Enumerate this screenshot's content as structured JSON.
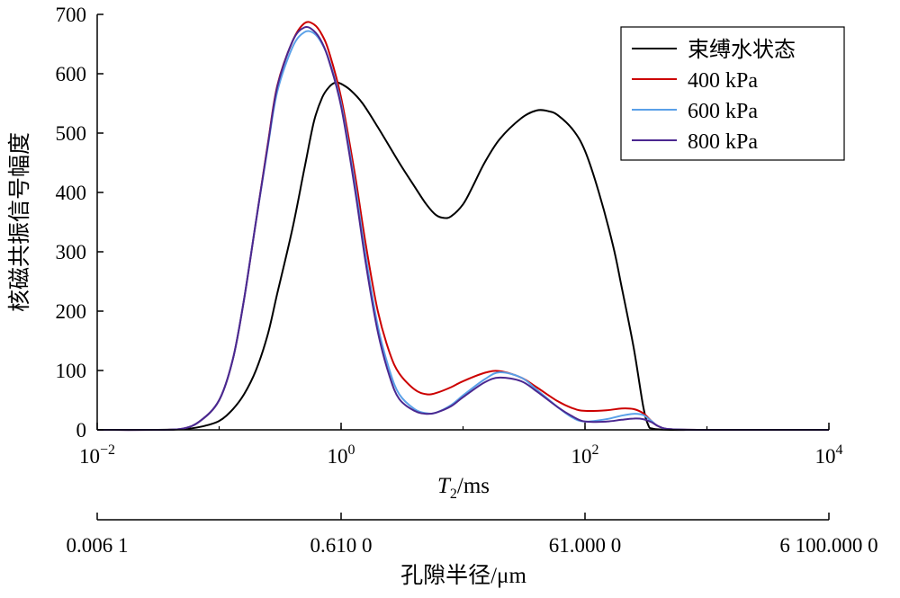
{
  "chart_data": {
    "type": "line",
    "x_scale": "log10",
    "xlim": [
      0.01,
      10000
    ],
    "ylim": [
      0,
      700
    ],
    "ylabel": "核磁共振信号幅度",
    "xlabel_italic": "T",
    "xlabel_sub": "2",
    "xlabel_rest": "/ms",
    "secondary_xlabel": "孔隙半径/μm",
    "y_ticks": [
      {
        "value": 0,
        "label": "0"
      },
      {
        "value": 100,
        "label": "100"
      },
      {
        "value": 200,
        "label": "200"
      },
      {
        "value": 300,
        "label": "300"
      },
      {
        "value": 400,
        "label": "400"
      },
      {
        "value": 500,
        "label": "500"
      },
      {
        "value": 600,
        "label": "600"
      },
      {
        "value": 700,
        "label": "700"
      }
    ],
    "x_ticks": [
      {
        "value": 0.01,
        "base": "10",
        "exp": "−2"
      },
      {
        "value": 1,
        "base": "10",
        "exp": "0"
      },
      {
        "value": 100,
        "base": "10",
        "exp": "2"
      },
      {
        "value": 10000,
        "base": "10",
        "exp": "4"
      }
    ],
    "secondary_x_ticks": [
      {
        "value": 0.01,
        "label": "0.006 1"
      },
      {
        "value": 1,
        "label": "0.610 0"
      },
      {
        "value": 100,
        "label": "61.000 0"
      },
      {
        "value": 10000,
        "label": "6 100.000 0"
      }
    ],
    "legend_position": "top-right",
    "series": [
      {
        "name": "束缚水状态",
        "color": "#000000",
        "points": [
          [
            0.01,
            0
          ],
          [
            0.03,
            0
          ],
          [
            0.05,
            1
          ],
          [
            0.07,
            5
          ],
          [
            0.1,
            15
          ],
          [
            0.13,
            35
          ],
          [
            0.16,
            60
          ],
          [
            0.2,
            100
          ],
          [
            0.25,
            160
          ],
          [
            0.3,
            230
          ],
          [
            0.4,
            340
          ],
          [
            0.5,
            440
          ],
          [
            0.6,
            520
          ],
          [
            0.7,
            560
          ],
          [
            0.8,
            578
          ],
          [
            0.9,
            585
          ],
          [
            1.0,
            583
          ],
          [
            1.2,
            572
          ],
          [
            1.5,
            550
          ],
          [
            2,
            510
          ],
          [
            3,
            450
          ],
          [
            4,
            410
          ],
          [
            5,
            380
          ],
          [
            6,
            362
          ],
          [
            7,
            357
          ],
          [
            8,
            360
          ],
          [
            10,
            380
          ],
          [
            12,
            410
          ],
          [
            15,
            450
          ],
          [
            20,
            490
          ],
          [
            30,
            525
          ],
          [
            40,
            538
          ],
          [
            50,
            537
          ],
          [
            60,
            530
          ],
          [
            80,
            505
          ],
          [
            100,
            470
          ],
          [
            130,
            400
          ],
          [
            170,
            310
          ],
          [
            200,
            240
          ],
          [
            250,
            140
          ],
          [
            300,
            40
          ],
          [
            330,
            8
          ],
          [
            360,
            2
          ],
          [
            500,
            0
          ],
          [
            1000,
            0
          ],
          [
            10000,
            0
          ]
        ]
      },
      {
        "name": "400 kPa",
        "color": "#cc0000",
        "points": [
          [
            0.01,
            0
          ],
          [
            0.03,
            0
          ],
          [
            0.05,
            2
          ],
          [
            0.07,
            15
          ],
          [
            0.1,
            50
          ],
          [
            0.13,
            120
          ],
          [
            0.16,
            220
          ],
          [
            0.2,
            350
          ],
          [
            0.25,
            480
          ],
          [
            0.3,
            580
          ],
          [
            0.4,
            655
          ],
          [
            0.5,
            685
          ],
          [
            0.6,
            683
          ],
          [
            0.7,
            665
          ],
          [
            0.8,
            635
          ],
          [
            1.0,
            560
          ],
          [
            1.3,
            430
          ],
          [
            1.6,
            310
          ],
          [
            2,
            200
          ],
          [
            2.5,
            130
          ],
          [
            3,
            95
          ],
          [
            4,
            68
          ],
          [
            5,
            60
          ],
          [
            6,
            62
          ],
          [
            8,
            72
          ],
          [
            10,
            82
          ],
          [
            15,
            96
          ],
          [
            20,
            99
          ],
          [
            30,
            88
          ],
          [
            40,
            72
          ],
          [
            60,
            48
          ],
          [
            80,
            36
          ],
          [
            100,
            32
          ],
          [
            150,
            33
          ],
          [
            200,
            36
          ],
          [
            250,
            35
          ],
          [
            300,
            28
          ],
          [
            350,
            15
          ],
          [
            400,
            6
          ],
          [
            500,
            1
          ],
          [
            1000,
            0
          ],
          [
            10000,
            0
          ]
        ]
      },
      {
        "name": "600 kPa",
        "color": "#5aa0e8",
        "points": [
          [
            0.01,
            0
          ],
          [
            0.03,
            0
          ],
          [
            0.05,
            2
          ],
          [
            0.07,
            15
          ],
          [
            0.1,
            50
          ],
          [
            0.13,
            120
          ],
          [
            0.16,
            220
          ],
          [
            0.2,
            350
          ],
          [
            0.25,
            475
          ],
          [
            0.3,
            570
          ],
          [
            0.4,
            645
          ],
          [
            0.5,
            670
          ],
          [
            0.6,
            668
          ],
          [
            0.7,
            650
          ],
          [
            0.8,
            622
          ],
          [
            1.0,
            550
          ],
          [
            1.3,
            415
          ],
          [
            1.6,
            290
          ],
          [
            2,
            175
          ],
          [
            2.5,
            100
          ],
          [
            3,
            60
          ],
          [
            4,
            35
          ],
          [
            5,
            28
          ],
          [
            6,
            29
          ],
          [
            8,
            42
          ],
          [
            10,
            58
          ],
          [
            15,
            85
          ],
          [
            20,
            97
          ],
          [
            30,
            88
          ],
          [
            40,
            68
          ],
          [
            60,
            38
          ],
          [
            80,
            20
          ],
          [
            100,
            14
          ],
          [
            150,
            18
          ],
          [
            200,
            24
          ],
          [
            250,
            27
          ],
          [
            300,
            25
          ],
          [
            350,
            15
          ],
          [
            400,
            6
          ],
          [
            500,
            1
          ],
          [
            1000,
            0
          ],
          [
            10000,
            0
          ]
        ]
      },
      {
        "name": "800 kPa",
        "color": "#4b2890",
        "points": [
          [
            0.01,
            0
          ],
          [
            0.03,
            0
          ],
          [
            0.05,
            2
          ],
          [
            0.07,
            15
          ],
          [
            0.1,
            50
          ],
          [
            0.13,
            120
          ],
          [
            0.16,
            220
          ],
          [
            0.2,
            350
          ],
          [
            0.25,
            478
          ],
          [
            0.3,
            578
          ],
          [
            0.4,
            655
          ],
          [
            0.5,
            678
          ],
          [
            0.6,
            672
          ],
          [
            0.7,
            652
          ],
          [
            0.8,
            620
          ],
          [
            1.0,
            545
          ],
          [
            1.3,
            405
          ],
          [
            1.6,
            278
          ],
          [
            2,
            165
          ],
          [
            2.5,
            90
          ],
          [
            3,
            52
          ],
          [
            4,
            32
          ],
          [
            5,
            27
          ],
          [
            6,
            29
          ],
          [
            8,
            40
          ],
          [
            10,
            55
          ],
          [
            15,
            80
          ],
          [
            20,
            88
          ],
          [
            30,
            82
          ],
          [
            40,
            65
          ],
          [
            60,
            38
          ],
          [
            80,
            22
          ],
          [
            100,
            14
          ],
          [
            150,
            14
          ],
          [
            200,
            17
          ],
          [
            250,
            19
          ],
          [
            300,
            18
          ],
          [
            350,
            13
          ],
          [
            400,
            6
          ],
          [
            500,
            1
          ],
          [
            1000,
            0
          ],
          [
            10000,
            0
          ]
        ]
      }
    ]
  }
}
